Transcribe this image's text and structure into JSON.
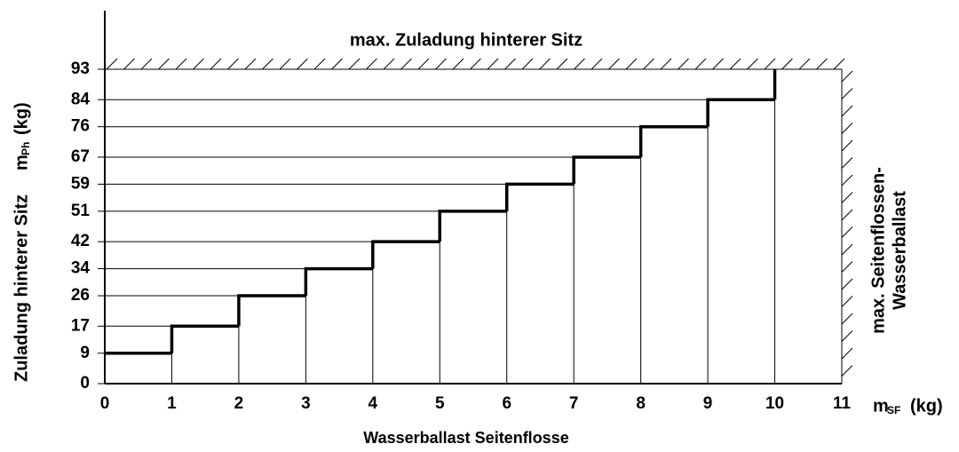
{
  "chart_data": {
    "type": "step",
    "title": "max. Zuladung hinterer Sitz",
    "right_annotation": [
      "max. Seitenflossen-",
      "Wasserballast"
    ],
    "x_label": "Wasserballast Seitenflosse",
    "x_unit": {
      "symbol": "m",
      "subscript": "SF",
      "unit": "(kg)"
    },
    "y_label": {
      "text": "Zuladung hinterer Sitz",
      "symbol": "m",
      "subscript": "Ph",
      "unit": "(kg)"
    },
    "x": [
      0,
      1,
      2,
      3,
      4,
      5,
      6,
      7,
      8,
      9,
      10
    ],
    "values": [
      9,
      17,
      26,
      34,
      42,
      51,
      59,
      67,
      76,
      84,
      93
    ],
    "color": "#000000",
    "xlim": [
      0,
      11
    ],
    "xticks": [
      0,
      1,
      2,
      3,
      4,
      5,
      6,
      7,
      8,
      9,
      10,
      11
    ],
    "ylim": [
      0,
      93
    ],
    "yticks": [
      0,
      9,
      17,
      26,
      34,
      42,
      51,
      59,
      67,
      76,
      84,
      93
    ]
  }
}
